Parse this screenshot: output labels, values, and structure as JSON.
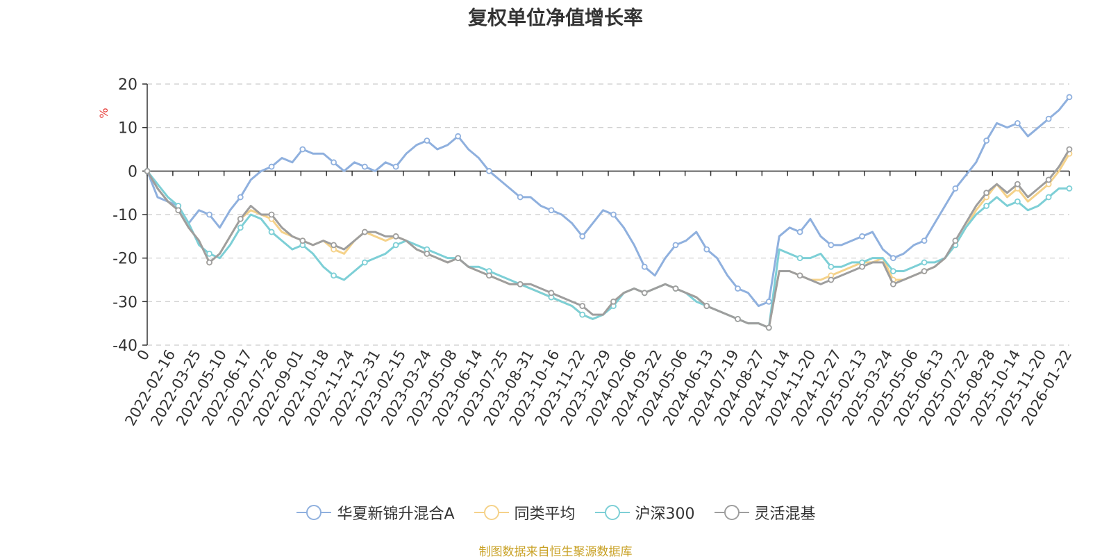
{
  "chart_data": {
    "type": "line",
    "title": "复权单位净值增长率",
    "ylabel": "%",
    "ylim": [
      -40,
      20
    ],
    "yticks": [
      20,
      10,
      0,
      -10,
      -20,
      -30,
      -40
    ],
    "grid": true,
    "legend_position": "bottom-center",
    "x_tick_labels": [
      "0",
      "2022-02-16",
      "2022-03-25",
      "2022-05-10",
      "2022-06-17",
      "2022-07-26",
      "2022-09-01",
      "2022-10-18",
      "2022-11-24",
      "2022-12-31",
      "2023-02-15",
      "2023-03-24",
      "2023-05-08",
      "2023-06-14",
      "2023-07-25",
      "2023-08-31",
      "2023-10-16",
      "2023-11-22",
      "2023-12-29",
      "2024-02-06",
      "2024-03-22",
      "2024-05-06",
      "2024-06-13",
      "2024-07-19",
      "2024-08-27",
      "2024-10-14",
      "2024-11-20",
      "2024-12-27",
      "2025-02-13",
      "2025-03-24",
      "2025-05-06",
      "2025-06-13",
      "2025-07-22",
      "2025-08-28",
      "2025-10-14",
      "2025-11-20",
      "2026-01-22"
    ],
    "series": [
      {
        "name": "华夏新锦升混合A",
        "color": "#8fb0de",
        "values": [
          0,
          -6,
          -7,
          -8,
          -12,
          -9,
          -10,
          -13,
          -9,
          -6,
          -2,
          0,
          1,
          3,
          2,
          5,
          4,
          4,
          2,
          0,
          2,
          1,
          0,
          2,
          1,
          4,
          6,
          7,
          5,
          6,
          8,
          5,
          3,
          0,
          -2,
          -4,
          -6,
          -6,
          -8,
          -9,
          -10,
          -12,
          -15,
          -12,
          -9,
          -10,
          -13,
          -17,
          -22,
          -24,
          -20,
          -17,
          -16,
          -14,
          -18,
          -20,
          -24,
          -27,
          -28,
          -31,
          -30,
          -15,
          -13,
          -14,
          -11,
          -15,
          -17,
          -17,
          -16,
          -15,
          -14,
          -18,
          -20,
          -19,
          -17,
          -16,
          -12,
          -8,
          -4,
          -1,
          2,
          7,
          11,
          10,
          11,
          8,
          10,
          12,
          14,
          17
        ]
      },
      {
        "name": "同类平均",
        "color": "#f5d28a",
        "values": [
          0,
          -4,
          -7,
          -9,
          -13,
          -16,
          -21,
          -19,
          -15,
          -11,
          -9,
          -10,
          -11,
          -14,
          -15,
          -16,
          -17,
          -16,
          -18,
          -19,
          -16,
          -14,
          -15,
          -16,
          -15,
          -16,
          -18,
          -19,
          -20,
          -21,
          -20,
          -22,
          -23,
          -24,
          -25,
          -26,
          -26,
          -27,
          -28,
          -29,
          -30,
          -31,
          -33,
          -34,
          -33,
          -30,
          -28,
          -27,
          -28,
          -27,
          -26,
          -27,
          -28,
          -29,
          -31,
          -32,
          -33,
          -34,
          -35,
          -35,
          -36,
          -23,
          -23,
          -24,
          -25,
          -25,
          -24,
          -23,
          -22,
          -21,
          -21,
          -20,
          -25,
          -25,
          -24,
          -23,
          -22,
          -20,
          -17,
          -13,
          -9,
          -6,
          -3,
          -6,
          -4,
          -7,
          -5,
          -3,
          0,
          4
        ]
      },
      {
        "name": "沪深300",
        "color": "#7dcfd6",
        "values": [
          0,
          -3,
          -6,
          -8,
          -12,
          -17,
          -19,
          -20,
          -17,
          -13,
          -10,
          -11,
          -14,
          -16,
          -18,
          -17,
          -19,
          -22,
          -24,
          -25,
          -23,
          -21,
          -20,
          -19,
          -17,
          -16,
          -17,
          -18,
          -19,
          -20,
          -20,
          -22,
          -22,
          -23,
          -24,
          -25,
          -26,
          -27,
          -28,
          -29,
          -30,
          -31,
          -33,
          -34,
          -33,
          -31,
          -28,
          -27,
          -28,
          -27,
          -26,
          -27,
          -28,
          -30,
          -31,
          -32,
          -33,
          -34,
          -35,
          -35,
          -36,
          -18,
          -19,
          -20,
          -20,
          -19,
          -22,
          -22,
          -21,
          -21,
          -20,
          -20,
          -23,
          -23,
          -22,
          -21,
          -21,
          -20,
          -17,
          -13,
          -10,
          -8,
          -6,
          -8,
          -7,
          -9,
          -8,
          -6,
          -4,
          -4
        ]
      },
      {
        "name": "灵活混基",
        "color": "#9e9e9e",
        "values": [
          0,
          -4,
          -7,
          -9,
          -13,
          -16,
          -21,
          -19,
          -15,
          -11,
          -8,
          -10,
          -10,
          -13,
          -15,
          -16,
          -17,
          -16,
          -17,
          -18,
          -16,
          -14,
          -14,
          -15,
          -15,
          -16,
          -18,
          -19,
          -20,
          -21,
          -20,
          -22,
          -23,
          -24,
          -25,
          -26,
          -26,
          -26,
          -27,
          -28,
          -29,
          -30,
          -31,
          -33,
          -33,
          -30,
          -28,
          -27,
          -28,
          -27,
          -26,
          -27,
          -28,
          -29,
          -31,
          -32,
          -33,
          -34,
          -35,
          -35,
          -36,
          -23,
          -23,
          -24,
          -25,
          -26,
          -25,
          -24,
          -23,
          -22,
          -21,
          -21,
          -26,
          -25,
          -24,
          -23,
          -22,
          -20,
          -16,
          -12,
          -8,
          -5,
          -3,
          -5,
          -3,
          -6,
          -4,
          -2,
          1,
          5
        ]
      }
    ]
  },
  "source_note": "制图数据来自恒生聚源数据库"
}
